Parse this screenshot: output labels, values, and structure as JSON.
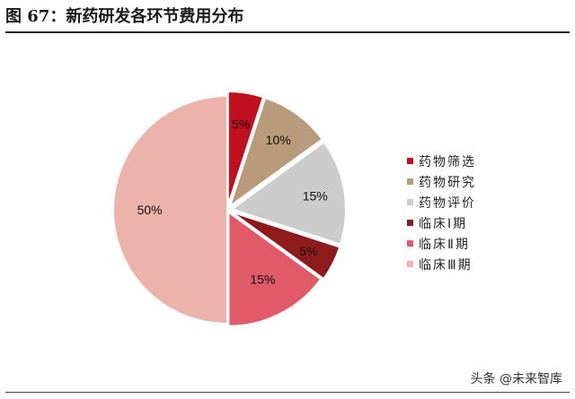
{
  "header": {
    "title": "图 67：新药研发各环节费用分布"
  },
  "chart_data": {
    "type": "pie",
    "title": "",
    "slices": [
      {
        "label": "药物筛选",
        "value": 5,
        "display": "5%",
        "color": "#c0101f"
      },
      {
        "label": "药物研究",
        "value": 10,
        "display": "10%",
        "color": "#b99a7a"
      },
      {
        "label": "药物评价",
        "value": 15,
        "display": "15%",
        "color": "#cccccc"
      },
      {
        "label": "临床Ⅰ期",
        "value": 5,
        "display": "5%",
        "color": "#8e1b1b"
      },
      {
        "label": "临床Ⅱ期",
        "value": 15,
        "display": "15%",
        "color": "#e05a67"
      },
      {
        "label": "临床Ⅲ期",
        "value": 50,
        "display": "50%",
        "color": "#ebb3a9"
      }
    ],
    "start": "12 o'clock",
    "direction": "clockwise",
    "legend_position": "right"
  },
  "watermark": {
    "text": "头条 @未来智库"
  }
}
